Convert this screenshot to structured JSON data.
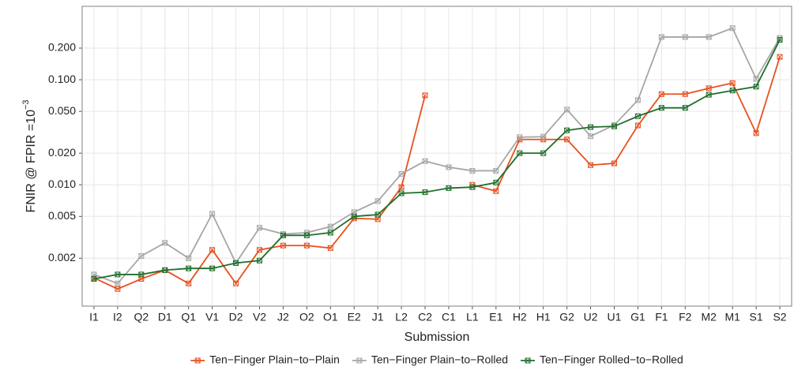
{
  "chart_data": {
    "type": "line",
    "x_label": "Submission",
    "y_label": {
      "text": "FNIR @ FPIR =10",
      "superscript": "−3"
    },
    "categories": [
      "I1",
      "I2",
      "Q2",
      "D1",
      "Q1",
      "V1",
      "D2",
      "V2",
      "J2",
      "O2",
      "O1",
      "E2",
      "J1",
      "L2",
      "C2",
      "C1",
      "L1",
      "E1",
      "H2",
      "H1",
      "G2",
      "U2",
      "U1",
      "G1",
      "F1",
      "F2",
      "M2",
      "M1",
      "S1",
      "S2"
    ],
    "log_scale": true,
    "grid": true,
    "legend": "bottom",
    "ylim": [
      0.0007,
      0.5
    ],
    "yticks": [
      0.002,
      0.005,
      {
        "value": 0.01,
        "label": "0.010"
      },
      {
        "value": 0.02,
        "label": "0.020"
      },
      {
        "value": 0.05,
        "label": "0.050"
      },
      {
        "value": 0.1,
        "label": "0.100"
      },
      {
        "value": 0.2,
        "label": "0.200"
      }
    ],
    "series": [
      {
        "name": "Ten−Finger Plain−to−Plain",
        "color": "#e8501e",
        "values": [
          0.0013,
          0.00102,
          0.00127,
          0.00154,
          0.00115,
          0.0024,
          0.00115,
          0.0024,
          0.00264,
          0.00264,
          0.0025,
          0.0048,
          0.0047,
          0.0095,
          0.071,
          null,
          0.01,
          0.0087,
          0.027,
          0.027,
          0.027,
          0.0154,
          0.016,
          0.0367,
          0.073,
          0.073,
          0.083,
          0.093,
          0.031,
          0.165
        ]
      },
      {
        "name": "Ten−Finger Plain−to−Rolled",
        "color": "#a6a6a6",
        "values": [
          0.0014,
          0.00115,
          0.0021,
          0.0028,
          0.002,
          0.0053,
          0.0018,
          0.0039,
          0.0034,
          0.0035,
          0.004,
          0.0055,
          0.007,
          0.0127,
          0.0168,
          0.0147,
          0.0136,
          0.0136,
          0.0284,
          0.0287,
          0.052,
          0.029,
          0.037,
          0.064,
          0.255,
          0.255,
          0.255,
          0.31,
          0.102,
          0.25
        ]
      },
      {
        "name": "Ten−Finger Rolled−to−Rolled",
        "color": "#1f6e2c",
        "values": [
          0.00127,
          0.0014,
          0.0014,
          0.00154,
          0.0016,
          0.0016,
          0.0018,
          0.0019,
          0.0033,
          0.0033,
          0.0035,
          0.005,
          0.0052,
          0.0083,
          0.0085,
          0.0093,
          0.0095,
          0.0105,
          0.02,
          0.02,
          0.033,
          0.0354,
          0.036,
          0.045,
          0.054,
          0.054,
          0.072,
          0.079,
          0.086,
          0.24
        ]
      }
    ]
  }
}
